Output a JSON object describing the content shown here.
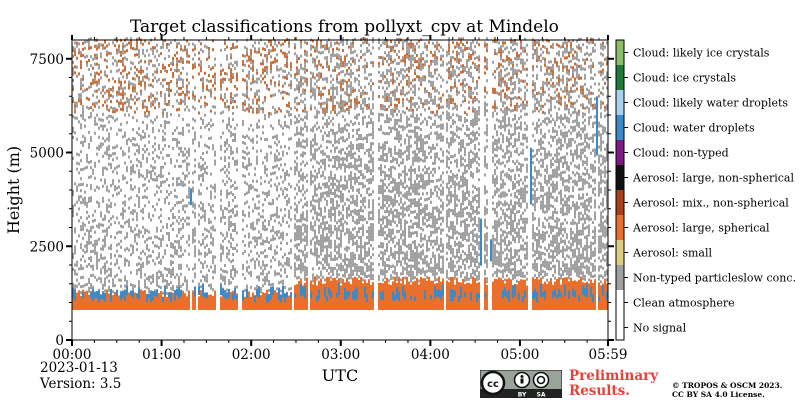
{
  "chart_data": {
    "type": "heatmap",
    "title": "Target classifications from pollyxt_cpv at Mindelo",
    "xlabel": "UTC",
    "ylabel": "Height (m)",
    "xlim_hours": [
      0,
      5.983
    ],
    "ylim": [
      0,
      8000
    ],
    "xticks": [
      "00:00",
      "01:00",
      "02:00",
      "03:00",
      "04:00",
      "05:00",
      "05:59"
    ],
    "yticks": [
      0,
      2500,
      5000,
      7500
    ],
    "classes": [
      {
        "label": "No signal",
        "color": "#ffffff"
      },
      {
        "label": "Clean atmosphere",
        "color": "#ffffff"
      },
      {
        "label": "Non-typed particleslow conc.",
        "color": "#a0a0a0"
      },
      {
        "label": "Aerosol: small",
        "color": "#dccd80"
      },
      {
        "label": "Aerosol: large, spherical",
        "color": "#e8702c"
      },
      {
        "label": "Aerosol: mix., non-spherical",
        "color": "#a8401c"
      },
      {
        "label": "Aerosol: large, non-spherical",
        "color": "#111111"
      },
      {
        "label": "Cloud: non-typed",
        "color": "#7a1a82"
      },
      {
        "label": "Cloud: water droplets",
        "color": "#3c8ac8"
      },
      {
        "label": "Cloud: likely water droplets",
        "color": "#a8d2f0"
      },
      {
        "label": "Cloud: ice crystals",
        "color": "#1f7a3a"
      },
      {
        "label": "Cloud: likely ice crystals",
        "color": "#8cbf6a"
      }
    ],
    "layers_m": {
      "no_signal_below": 800,
      "aerosol_large_spherical": [
        800,
        1600
      ],
      "cloud_water_droplets_base": [
        1000,
        1400
      ],
      "non_typed_particles": [
        1300,
        8000
      ],
      "ice_crystal_speckles": [
        6000,
        8000
      ]
    }
  },
  "info": {
    "date": "2023-01-13",
    "version": "Version: 3.5",
    "preliminary": [
      "Preliminary",
      "Results."
    ],
    "copyright": [
      "© TROPOS & OSCM 2023.",
      "CC BY SA 4.0 License."
    ],
    "license_badge": [
      "BY",
      "SA"
    ]
  },
  "colors": {
    "aerosol_orange": "#e8702c",
    "cloud_blue": "#3c8ac8",
    "speckle_grey": "#a0a0a0",
    "ice_brown": "#c8703c",
    "prelim_red": "#e8403a"
  }
}
